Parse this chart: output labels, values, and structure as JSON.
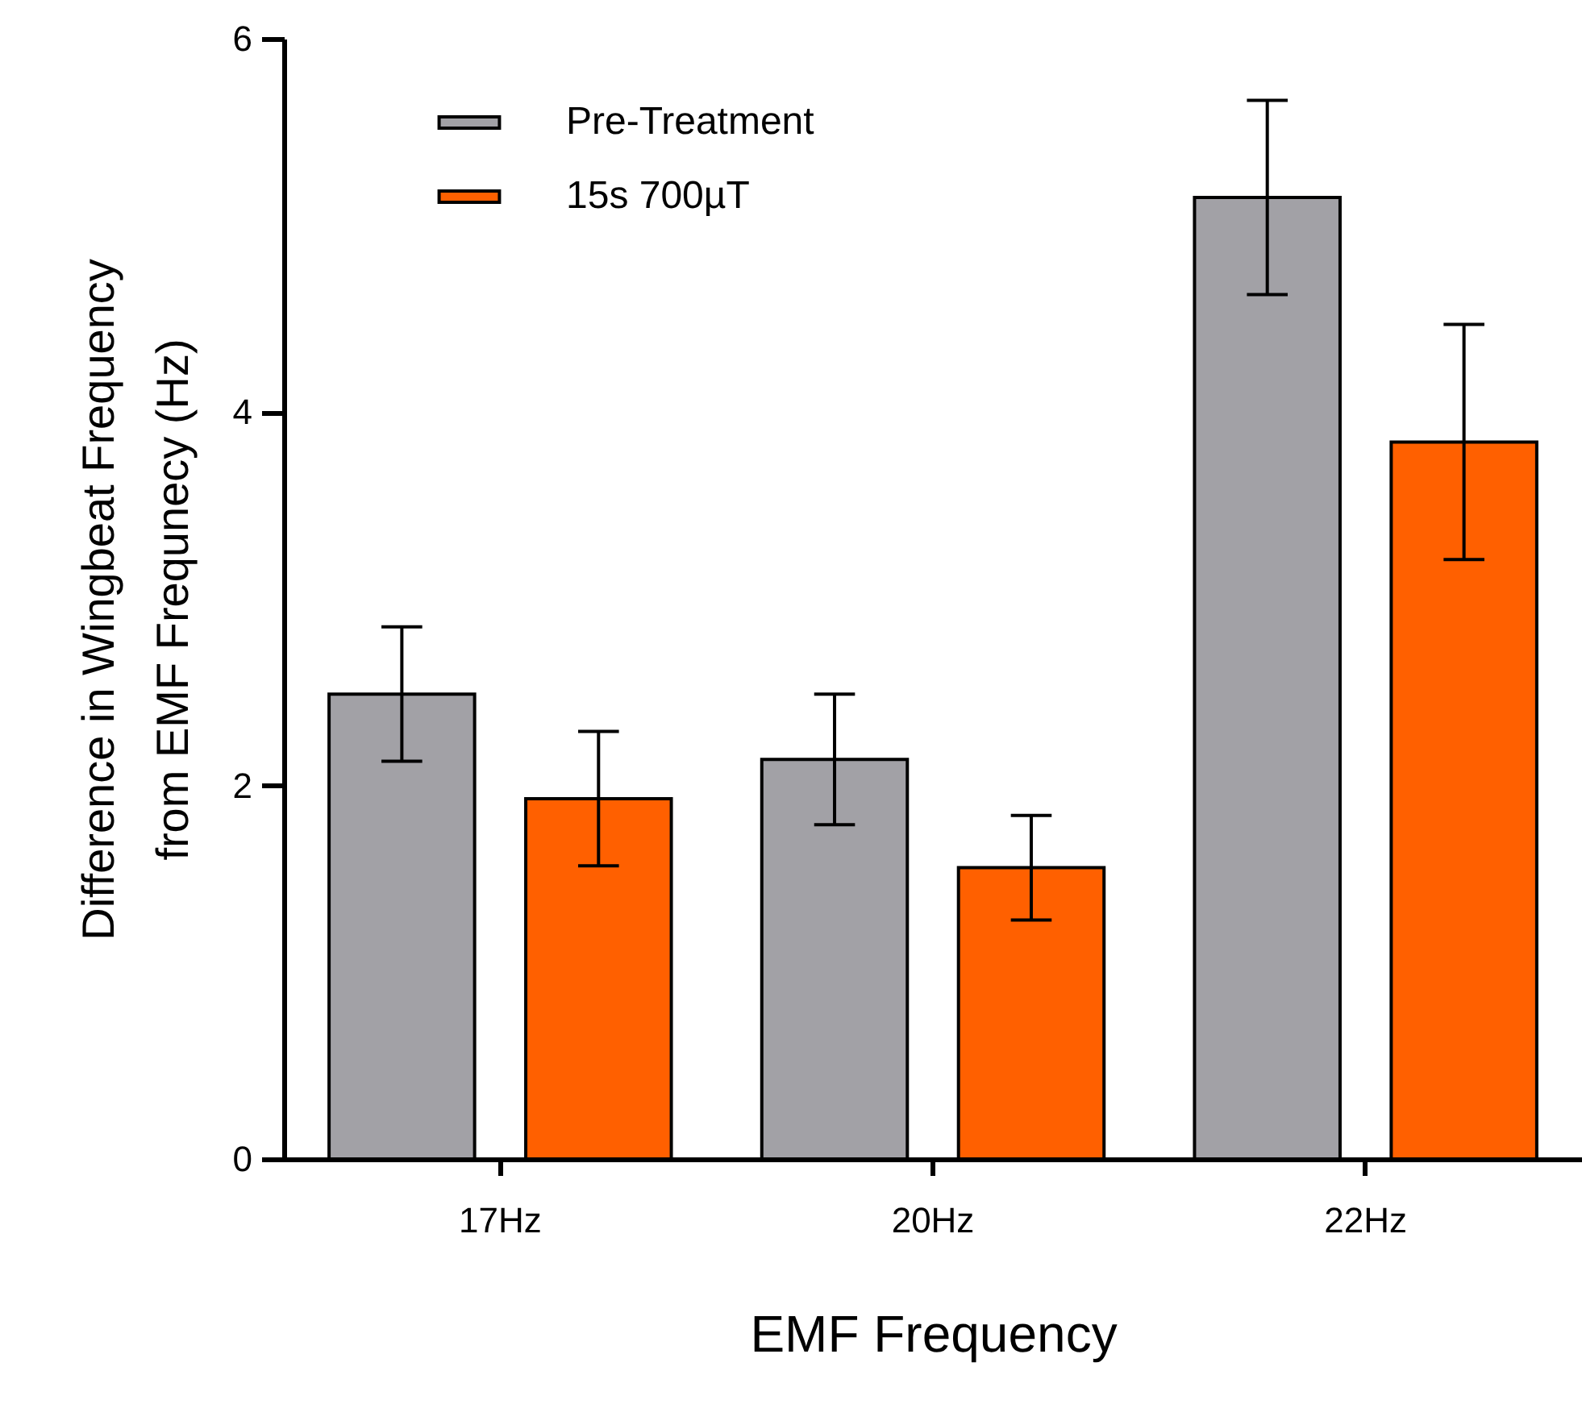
{
  "chart_data": {
    "type": "bar",
    "xlabel": "EMF Frequency",
    "ylabel": "Difference in Wingbeat Frequency\nfrom EMF Frequnecy (Hz)",
    "categories": [
      "17Hz",
      "20Hz",
      "22Hz"
    ],
    "series": [
      {
        "name": "Pre-Treatment",
        "color": "#a2a1a6",
        "values": [
          2.49,
          2.14,
          5.15
        ],
        "errors": [
          0.36,
          0.35,
          0.52
        ]
      },
      {
        "name": "15s 700µT",
        "color": "#ff6000",
        "values": [
          1.93,
          1.56,
          3.84
        ],
        "errors": [
          0.36,
          0.28,
          0.63
        ]
      }
    ],
    "ylim": [
      0,
      6
    ],
    "yticks": [
      0,
      2,
      4,
      6
    ],
    "legend": "top left"
  }
}
